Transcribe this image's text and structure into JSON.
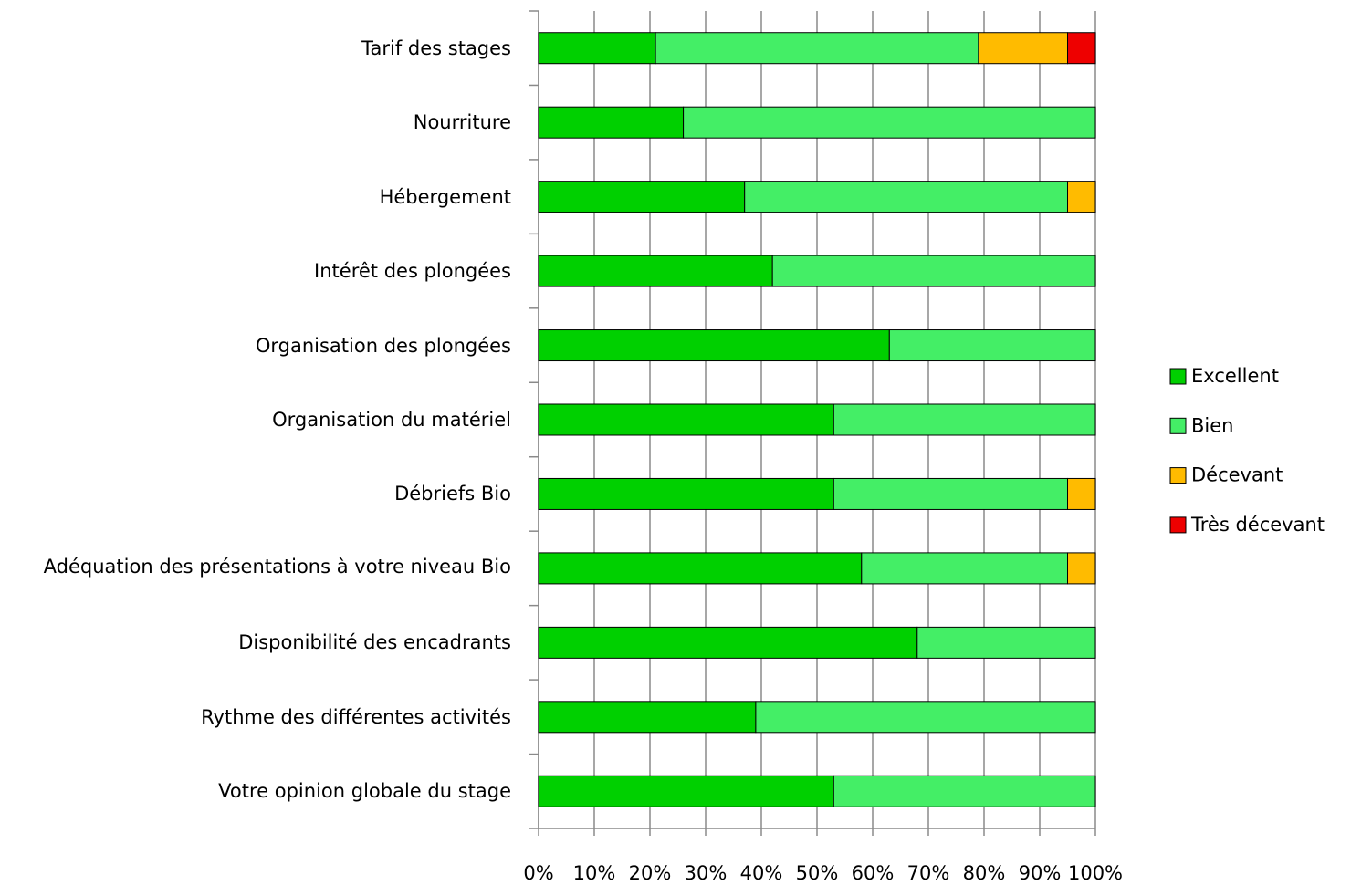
{
  "chart_data": {
    "type": "stacked_barh",
    "categories": [
      "Tarif des stages",
      "Nourriture",
      "Hébergement",
      "Intérêt des plongées",
      "Organisation des plongées",
      "Organisation du matériel",
      "Débriefs Bio",
      "Adéquation des présentations à votre niveau Bio",
      "Disponibilité des encadrants",
      "Rythme des différentes activités",
      "Votre opinion globale du stage"
    ],
    "series": [
      {
        "name": "Excellent",
        "color": "#00d000",
        "values": [
          21,
          26,
          37,
          42,
          63,
          53,
          53,
          58,
          68,
          39,
          53
        ]
      },
      {
        "name": "Bien",
        "color": "#44ee66",
        "values": [
          58,
          74,
          58,
          58,
          37,
          47,
          42,
          37,
          32,
          61,
          47
        ]
      },
      {
        "name": "Décevant",
        "color": "#ffbb00",
        "values": [
          16,
          0,
          5,
          0,
          0,
          0,
          5,
          5,
          0,
          0,
          0
        ]
      },
      {
        "name": "Très décevant",
        "color": "#ee0000",
        "values": [
          5,
          0,
          0,
          0,
          0,
          0,
          0,
          0,
          0,
          0,
          0
        ]
      }
    ],
    "xlim": [
      0,
      100
    ],
    "xticks": [
      {
        "value": 0,
        "label": "0%"
      },
      {
        "value": 10,
        "label": "10%"
      },
      {
        "value": 20,
        "label": "20%"
      },
      {
        "value": 30,
        "label": "30%"
      },
      {
        "value": 40,
        "label": "40%"
      },
      {
        "value": 50,
        "label": "50%"
      },
      {
        "value": 60,
        "label": "60%"
      },
      {
        "value": 70,
        "label": "70%"
      },
      {
        "value": 80,
        "label": "80%"
      },
      {
        "value": 90,
        "label": "90%"
      },
      {
        "value": 100,
        "label": "100%"
      }
    ],
    "grid": true,
    "legend": "right"
  }
}
